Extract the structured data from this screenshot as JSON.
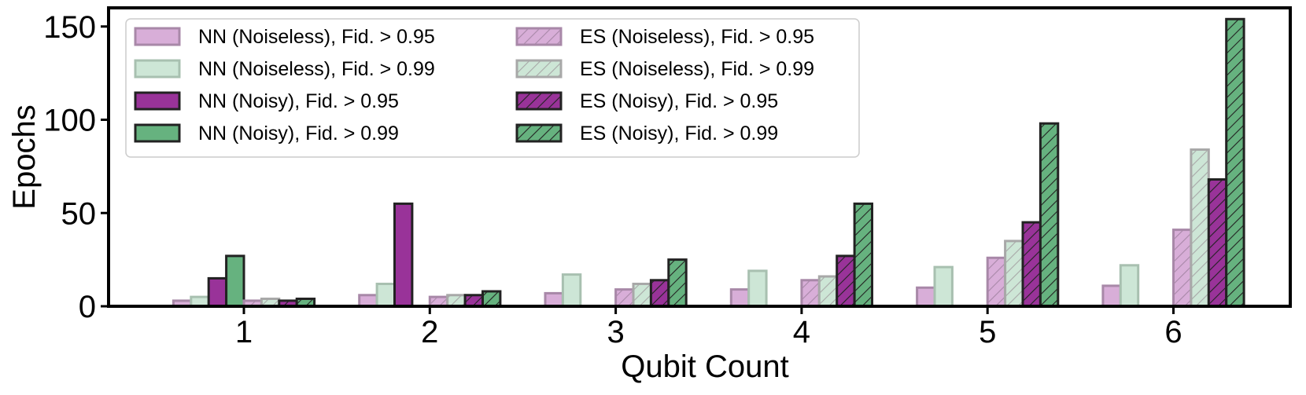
{
  "chart_data": {
    "type": "bar",
    "title": "",
    "xlabel": "Qubit Count",
    "ylabel": "Epochs",
    "categories": [
      "1",
      "2",
      "3",
      "4",
      "5",
      "6"
    ],
    "ylim": [
      0,
      160
    ],
    "yticks": [
      0,
      50,
      100,
      150
    ],
    "grid": false,
    "legend": {
      "placement": "top-left",
      "columns": 2
    },
    "series": [
      {
        "name": "NN (Noiseless), Fid. > 0.95",
        "values": [
          3,
          6,
          7,
          9,
          10,
          11
        ],
        "color": "#d8aed8",
        "edge": "#a888a8",
        "hatch": false
      },
      {
        "name": "NN (Noiseless), Fid. > 0.99",
        "values": [
          5,
          12,
          17,
          19,
          21,
          22
        ],
        "color": "#cde6d6",
        "edge": "#a8c0b0",
        "hatch": false
      },
      {
        "name": "NN (Noisy), Fid. > 0.95",
        "values": [
          15,
          55,
          0,
          0,
          0,
          0
        ],
        "color": "#993399",
        "edge": "#222222",
        "hatch": false
      },
      {
        "name": "NN (Noisy), Fid. > 0.99",
        "values": [
          27,
          0,
          0,
          0,
          0,
          0
        ],
        "color": "#66b27f",
        "edge": "#222222",
        "hatch": false
      },
      {
        "name": "ES (Noiseless), Fid. > 0.95",
        "values": [
          3,
          5,
          9,
          14,
          26,
          41
        ],
        "color": "#d8aed8",
        "edge": "#a888a8",
        "hatch": true
      },
      {
        "name": "ES (Noiseless), Fid. > 0.99",
        "values": [
          4,
          6,
          12,
          16,
          35,
          84
        ],
        "color": "#cde6d6",
        "edge": "#a8a8a8",
        "hatch": true
      },
      {
        "name": "ES (Noisy), Fid. > 0.95",
        "values": [
          3,
          6,
          14,
          27,
          45,
          68
        ],
        "color": "#993399",
        "edge": "#222222",
        "hatch": true
      },
      {
        "name": "ES (Noisy), Fid. > 0.99",
        "values": [
          4,
          8,
          25,
          55,
          98,
          154
        ],
        "color": "#66b27f",
        "edge": "#222222",
        "hatch": true
      }
    ]
  }
}
